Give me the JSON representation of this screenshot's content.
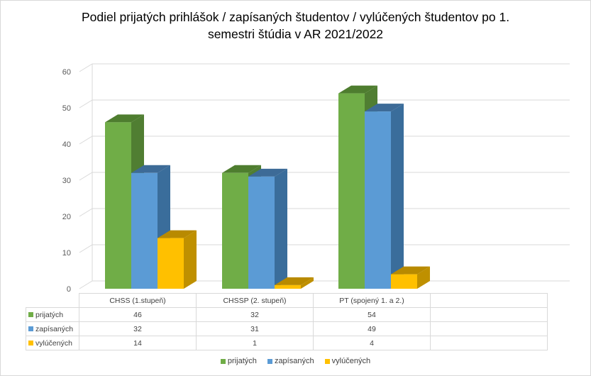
{
  "chart_data": {
    "type": "bar",
    "title": "Podiel prijatých prihlášok / zapísaných študentov / vylúčených študentov po 1. semestri štúdia v AR 2021/2022",
    "title_line1": "Podiel prijatých prihlášok / zapísaných študentov / vylúčených študentov po 1.",
    "title_line2": "semestri štúdia v AR 2021/2022",
    "categories": [
      "CHSS (1.stupeň)",
      "CHSSP (2. stupeň)",
      "PT (spojený 1. a 2.)"
    ],
    "series": [
      {
        "name": "prijatých",
        "values": [
          46,
          32,
          54
        ],
        "color": "#70ad47",
        "side": "#507e32",
        "top": "#4e7d2f"
      },
      {
        "name": "zapísaných",
        "values": [
          32,
          31,
          49
        ],
        "color": "#5b9bd5",
        "side": "#3a6d9b",
        "top": "#3d6b97"
      },
      {
        "name": "vylúčených",
        "values": [
          14,
          1,
          4
        ],
        "color": "#ffc000",
        "side": "#bf9000",
        "top": "#b88a00"
      }
    ],
    "ylim": [
      0,
      60
    ],
    "yticks": [
      0,
      10,
      20,
      30,
      40,
      50,
      60
    ],
    "grid": true,
    "legend": "bottom",
    "data_table": true
  }
}
